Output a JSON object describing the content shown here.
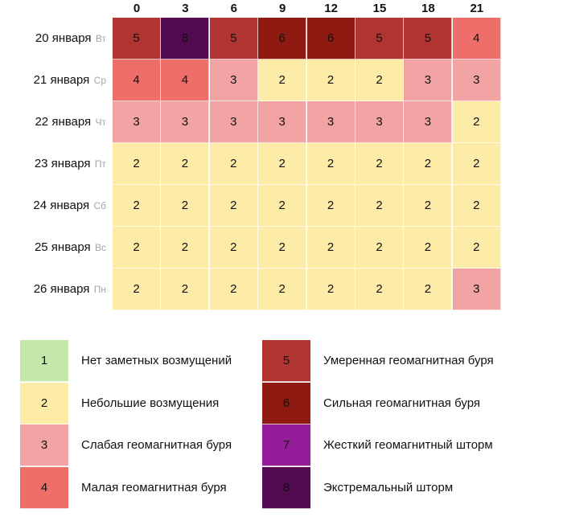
{
  "chart_data": {
    "type": "heatmap",
    "title": "",
    "xlabel": "",
    "ylabel": "",
    "x": [
      "0",
      "3",
      "6",
      "9",
      "12",
      "15",
      "18",
      "21"
    ],
    "y": [
      {
        "date": "20 января",
        "dow": "Вт"
      },
      {
        "date": "21 января",
        "dow": "Ср"
      },
      {
        "date": "22 января",
        "dow": "Чт"
      },
      {
        "date": "23 января",
        "dow": "Пт"
      },
      {
        "date": "24 января",
        "dow": "Сб"
      },
      {
        "date": "25 января",
        "dow": "Вс"
      },
      {
        "date": "26 января",
        "dow": "Пн"
      }
    ],
    "values": [
      [
        5,
        8,
        5,
        6,
        6,
        5,
        5,
        4
      ],
      [
        4,
        4,
        3,
        2,
        2,
        2,
        3,
        3
      ],
      [
        3,
        3,
        3,
        3,
        3,
        3,
        3,
        2
      ],
      [
        2,
        2,
        2,
        2,
        2,
        2,
        2,
        2
      ],
      [
        2,
        2,
        2,
        2,
        2,
        2,
        2,
        2
      ],
      [
        2,
        2,
        2,
        2,
        2,
        2,
        2,
        2
      ],
      [
        2,
        2,
        2,
        2,
        2,
        2,
        2,
        3
      ]
    ],
    "legend": [
      {
        "level": "1",
        "label": "Нет заметных возмущений",
        "color": "#c4e8ac"
      },
      {
        "level": "2",
        "label": "Небольшие возмущения",
        "color": "#fdeba8"
      },
      {
        "level": "3",
        "label": "Слабая геомагнитная буря",
        "color": "#f2a3a3"
      },
      {
        "level": "4",
        "label": "Малая геомагнитная буря",
        "color": "#ee6f6a"
      },
      {
        "level": "5",
        "label": "Умеренная геомагнитная буря",
        "color": "#b03530"
      },
      {
        "level": "6",
        "label": "Сильная геомагнитная буря",
        "color": "#8f1a12"
      },
      {
        "level": "7",
        "label": "Жесткий геомагнитный шторм",
        "color": "#951d9a"
      },
      {
        "level": "8",
        "label": "Экстремальный шторм",
        "color": "#520b50"
      }
    ]
  }
}
